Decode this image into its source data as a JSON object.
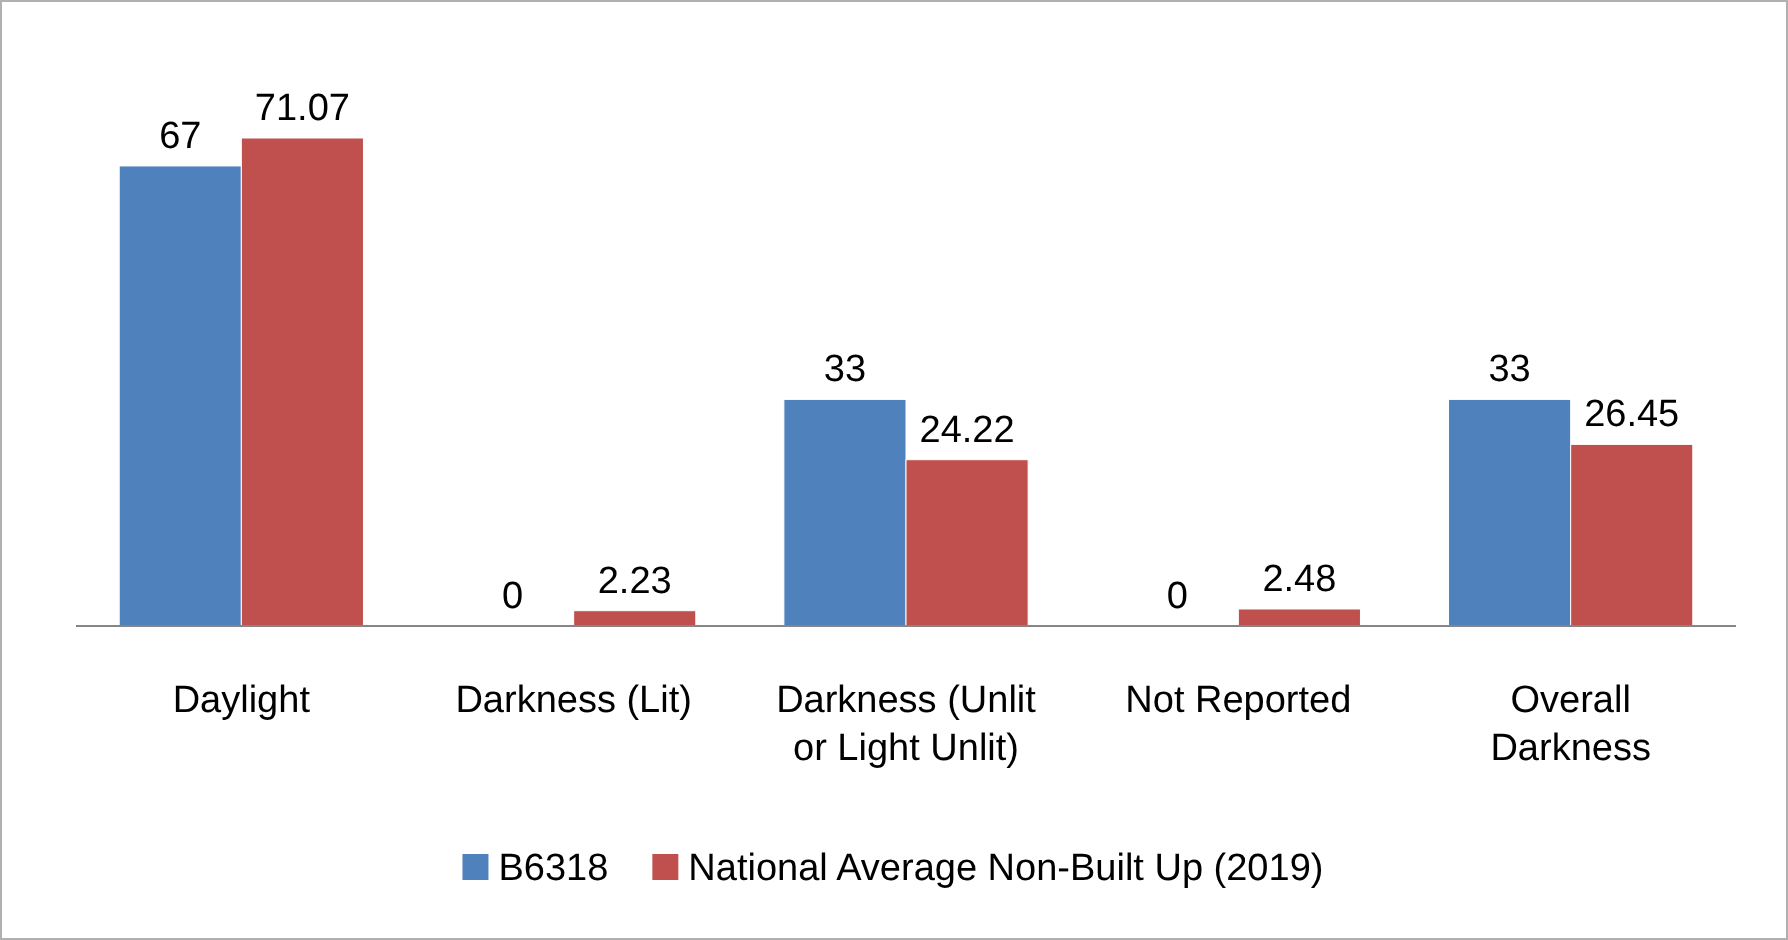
{
  "chart_data": {
    "type": "bar",
    "categories": [
      "Daylight",
      "Darkness (Lit)",
      "Darkness (Unlit or Light Unlit)",
      "Not Reported",
      "Overall Darkness"
    ],
    "series": [
      {
        "name": "B6318",
        "color": "#4f81bd",
        "values": [
          67,
          0,
          33,
          0,
          33
        ]
      },
      {
        "name": "National Average Non-Built Up (2019)",
        "color": "#c0504d",
        "values": [
          71.07,
          2.23,
          24.22,
          2.48,
          26.45
        ]
      }
    ],
    "data_labels": true,
    "legend": "bottom"
  }
}
